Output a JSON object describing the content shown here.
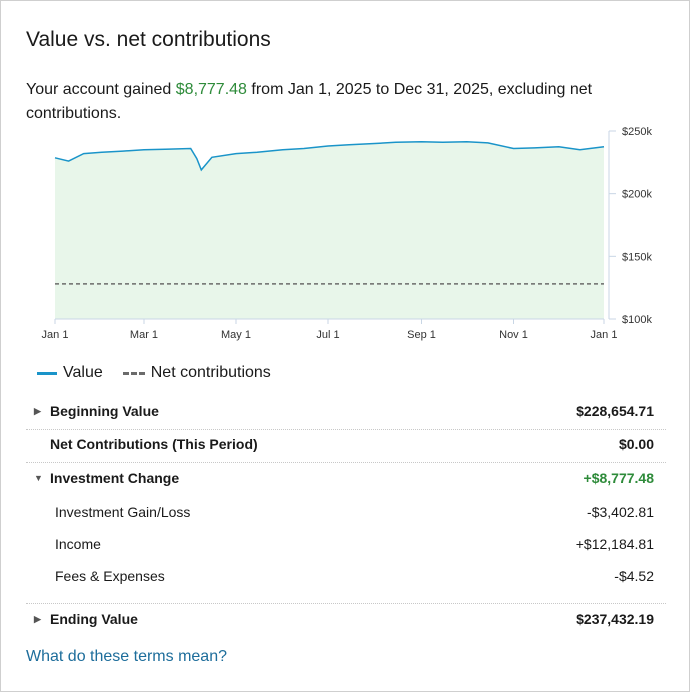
{
  "title": "Value vs. net contributions",
  "summary": {
    "prefix": "Your account gained",
    "gain": "$8,777.48",
    "suffix": "from Jan 1, 2025 to Dec 31, 2025, excluding net contributions."
  },
  "chart_data": {
    "type": "area",
    "x_ticks": [
      "Jan 1",
      "Mar 1",
      "May 1",
      "Jul 1",
      "Sep 1",
      "Nov 1",
      "Jan 1"
    ],
    "y_ticks": [
      "$100k",
      "$150k",
      "$200k",
      "$250k"
    ],
    "ylim": [
      100000,
      250000
    ],
    "series": [
      {
        "name": "Value",
        "x": [
          "2025-01-01",
          "2025-01-10",
          "2025-01-20",
          "2025-02-01",
          "2025-02-15",
          "2025-03-01",
          "2025-03-15",
          "2025-04-01",
          "2025-04-05",
          "2025-04-08",
          "2025-04-15",
          "2025-05-01",
          "2025-05-15",
          "2025-06-01",
          "2025-06-15",
          "2025-07-01",
          "2025-07-15",
          "2025-08-01",
          "2025-08-15",
          "2025-09-01",
          "2025-09-15",
          "2025-10-01",
          "2025-10-15",
          "2025-11-01",
          "2025-11-15",
          "2025-12-01",
          "2025-12-15",
          "2025-12-31"
        ],
        "values": [
          228655,
          226000,
          232000,
          233000,
          234000,
          235000,
          235500,
          236000,
          228000,
          219000,
          229000,
          232000,
          233000,
          235000,
          236000,
          238000,
          239000,
          240000,
          241000,
          241500,
          241000,
          241500,
          240500,
          236000,
          236500,
          237500,
          235000,
          237432
        ]
      },
      {
        "name": "Net contributions",
        "x": [
          "2025-01-01",
          "2025-12-31"
        ],
        "values": [
          128000,
          128000
        ]
      }
    ],
    "grid": false,
    "legend": "bottom-left",
    "colors": {
      "value_line": "#1a94c9",
      "value_fill": "#e8f6ea",
      "contrib_line": "#6b6b6b"
    }
  },
  "legend": {
    "value": "Value",
    "contrib": "Net contributions"
  },
  "rows": {
    "beginning": {
      "label": "Beginning Value",
      "value": "$228,654.71"
    },
    "net_contrib": {
      "label": "Net Contributions (This Period)",
      "value": "$0.00"
    },
    "investment_change": {
      "label": "Investment Change",
      "value": "+$8,777.48"
    },
    "gain_loss": {
      "label": "Investment Gain/Loss",
      "value": "-$3,402.81"
    },
    "income": {
      "label": "Income",
      "value": "+$12,184.81"
    },
    "fees": {
      "label": "Fees & Expenses",
      "value": "-$4.52"
    },
    "ending": {
      "label": "Ending Value",
      "value": "$237,432.19"
    }
  },
  "link": "What do these terms mean?"
}
